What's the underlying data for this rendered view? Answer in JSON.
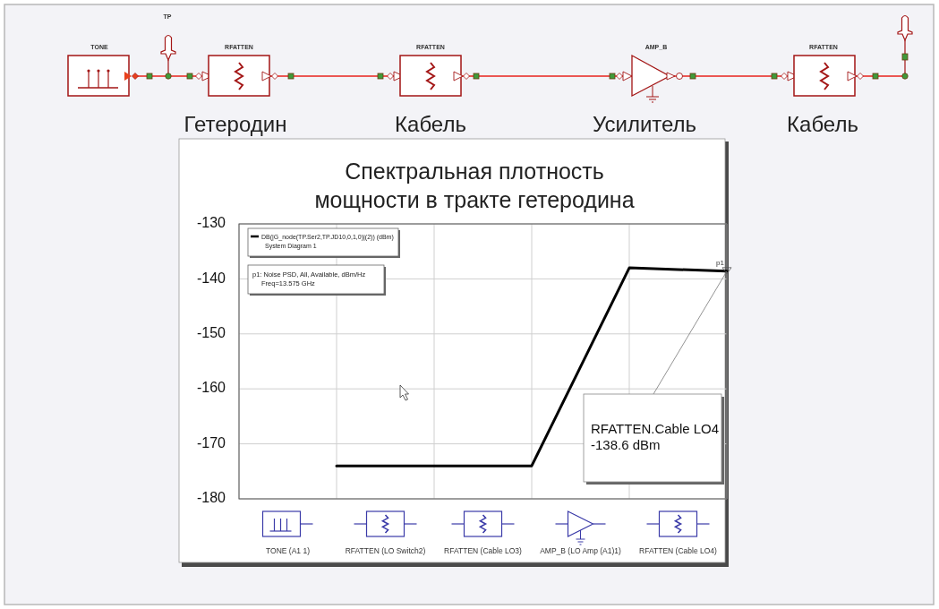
{
  "chart_data": {
    "type": "line",
    "title": "Спектральная плотность\nмощности в тракте гетеродина",
    "categories": [
      null,
      null,
      null,
      null,
      null,
      null
    ],
    "series": [
      {
        "name": "DB(|G_node(TP.Ser2,TP.JD10,0,1,0)|(2)) (dBm)\nSystem Diagram 1",
        "color": "#000000",
        "values": [
          null,
          -174,
          -174,
          -174,
          -138,
          -138.6
        ]
      }
    ],
    "ylim": [
      -180,
      -130
    ],
    "yticks": [
      -180,
      -170,
      -160,
      -150,
      -140,
      -130
    ],
    "grid": true,
    "legend": "top left",
    "annotations": [
      "TP",
      "TONE",
      "RFATTEN",
      "RFATTEN",
      "AMP_B",
      "RFATTEN",
      "Гетеродин",
      "Кабель",
      "Усилитель",
      "Кабель",
      "TONE (A1 1)",
      "RFATTEN (LO Switch2)",
      "RFATTEN (Cable LO3)",
      "AMP_B (LO Amp (A1)1)",
      "RFATTEN (Cable LO4)",
      "p1: Noise PSD, All, Available, dBm/Hz\nFreq=13.575 GHz",
      "RFATTEN.Cable LO4\n-138.6 dBm",
      {
        "text": "p1",
        "y": -138.6
      }
    ]
  }
}
